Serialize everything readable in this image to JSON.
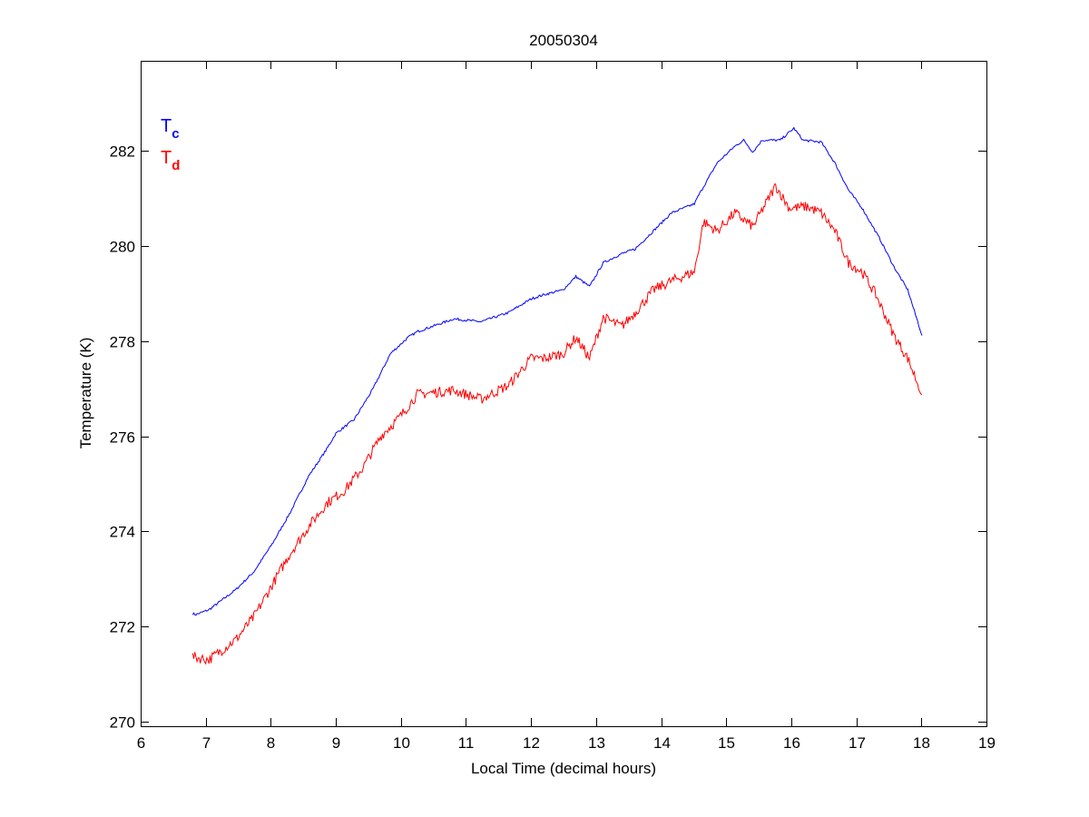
{
  "chart_data": {
    "type": "line",
    "title": "20050304",
    "xlabel": "Local Time (decimal hours)",
    "ylabel": "Temperature (K)",
    "xlim": [
      6,
      19
    ],
    "ylim": [
      269.9,
      283.9
    ],
    "xticks": [
      6,
      7,
      8,
      9,
      10,
      11,
      12,
      13,
      14,
      15,
      16,
      17,
      18,
      19
    ],
    "yticks": [
      270,
      272,
      274,
      276,
      278,
      280,
      282
    ],
    "grid": false,
    "legend_placement": "top-left",
    "series": [
      {
        "name": "Tc",
        "label_main": "T",
        "label_sub": "c",
        "color": "#0000ff",
        "x": [
          6.8,
          6.85,
          7.05,
          7.46,
          7.74,
          8.02,
          8.3,
          8.58,
          8.86,
          9.0,
          9.28,
          9.56,
          9.84,
          10.11,
          10.25,
          10.81,
          11.23,
          11.65,
          12.0,
          12.2,
          12.49,
          12.69,
          12.9,
          13.11,
          13.39,
          13.6,
          13.88,
          14.16,
          14.51,
          14.58,
          14.86,
          15.13,
          15.27,
          15.41,
          15.55,
          15.83,
          16.04,
          16.18,
          16.46,
          16.67,
          16.88,
          17.09,
          17.37,
          17.58,
          17.79,
          18.01
        ],
        "y": [
          272.27,
          272.25,
          272.35,
          272.77,
          273.15,
          273.73,
          274.4,
          275.16,
          275.73,
          276.06,
          276.35,
          276.97,
          277.74,
          278.08,
          278.2,
          278.47,
          278.41,
          278.6,
          278.89,
          278.98,
          279.08,
          279.36,
          279.15,
          279.65,
          279.84,
          279.94,
          280.32,
          280.7,
          280.89,
          281.08,
          281.75,
          282.1,
          282.23,
          281.98,
          282.23,
          282.23,
          282.48,
          282.23,
          282.19,
          281.75,
          281.18,
          280.8,
          280.13,
          279.56,
          279.08,
          278.12
        ]
      },
      {
        "name": "Td",
        "label_main": "T",
        "label_sub": "d",
        "color": "#ff0000",
        "x": [
          6.8,
          7.05,
          7.46,
          7.74,
          8.02,
          8.3,
          8.58,
          8.86,
          9.14,
          9.42,
          9.7,
          9.98,
          10.25,
          10.81,
          11.23,
          11.65,
          12.0,
          12.2,
          12.49,
          12.69,
          12.9,
          13.11,
          13.39,
          13.6,
          13.88,
          14.16,
          14.51,
          14.65,
          14.86,
          15.13,
          15.41,
          15.76,
          15.97,
          16.25,
          16.46,
          16.67,
          16.88,
          17.09,
          17.3,
          17.58,
          17.79,
          18.01
        ],
        "y": [
          271.36,
          271.3,
          271.72,
          272.2,
          272.87,
          273.54,
          274.1,
          274.59,
          274.87,
          275.35,
          276.02,
          276.4,
          276.88,
          276.97,
          276.78,
          277.07,
          277.64,
          277.64,
          277.74,
          278.08,
          277.64,
          278.5,
          278.31,
          278.6,
          279.08,
          279.27,
          279.46,
          280.51,
          280.32,
          280.7,
          280.41,
          281.27,
          280.8,
          280.83,
          280.7,
          280.32,
          279.65,
          279.46,
          278.98,
          278.12,
          277.64,
          276.88
        ]
      }
    ]
  }
}
